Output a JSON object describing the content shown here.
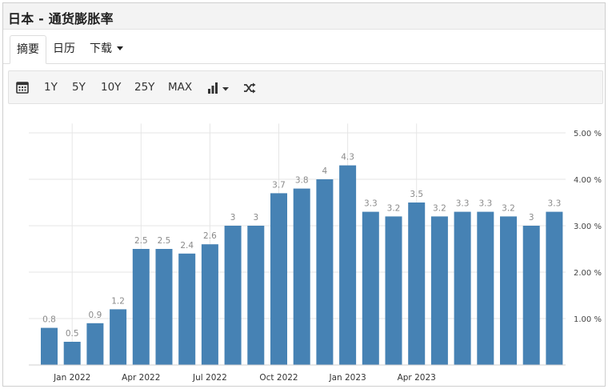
{
  "title": "日本 - 通货膨胀率",
  "tabs": [
    {
      "label": "摘要",
      "active": true
    },
    {
      "label": "日历",
      "active": false
    },
    {
      "label": "下载",
      "active": false
    }
  ],
  "toolbar": {
    "calendar_icon": "calendar-icon",
    "ranges": [
      "1Y",
      "5Y",
      "10Y",
      "25Y",
      "MAX"
    ],
    "chart_type_icon": "bar-chart-icon",
    "shuffle_icon": "shuffle-icon"
  },
  "chart_data": {
    "type": "bar",
    "categories": [
      "2021-12",
      "2022-01",
      "2022-02",
      "2022-03",
      "2022-04",
      "2022-05",
      "2022-06",
      "2022-07",
      "2022-08",
      "2022-09",
      "2022-10",
      "2022-11",
      "2022-12",
      "2023-01",
      "2023-02",
      "2023-03",
      "2023-04",
      "2023-05",
      "2023-06",
      "2023-07",
      "2023-08",
      "2023-09",
      "2023-10"
    ],
    "values": [
      0.8,
      0.5,
      0.9,
      1.2,
      2.5,
      2.5,
      2.4,
      2.6,
      3,
      3,
      3.7,
      3.8,
      4,
      4.3,
      3.3,
      3.2,
      3.5,
      3.2,
      3.3,
      3.3,
      3.2,
      3,
      3.3
    ],
    "data_labels": [
      "0.8",
      "0.5",
      "0.9",
      "1.2",
      "2.5",
      "2.5",
      "2.4",
      "2.6",
      "3",
      "3",
      "3.7",
      "3.8",
      "4",
      "4.3",
      "3.3",
      "3.2",
      "3.5",
      "3.2",
      "3.3",
      "3.3",
      "3.2",
      "3",
      "3.3"
    ],
    "x_tick_labels": [
      {
        "index": 1,
        "label": "Jan 2022"
      },
      {
        "index": 4,
        "label": "Apr 2022"
      },
      {
        "index": 7,
        "label": "Jul 2022"
      },
      {
        "index": 10,
        "label": "Oct 2022"
      },
      {
        "index": 13,
        "label": "Jan 2023"
      },
      {
        "index": 16,
        "label": "Apr 2023"
      }
    ],
    "y_ticks": [
      1,
      2,
      3,
      4,
      5
    ],
    "y_tick_labels": [
      "1.00 %",
      "2.00 %",
      "3.00 %",
      "4.00 %",
      "5.00 %"
    ],
    "ylim": [
      0,
      5.2
    ],
    "y_axis_position": "right",
    "grid": true,
    "bar_color": "#4682b4",
    "grid_color": "#e6e6e6",
    "label_color": "#8a8a8a",
    "title": "",
    "xlabel": "",
    "ylabel": ""
  }
}
